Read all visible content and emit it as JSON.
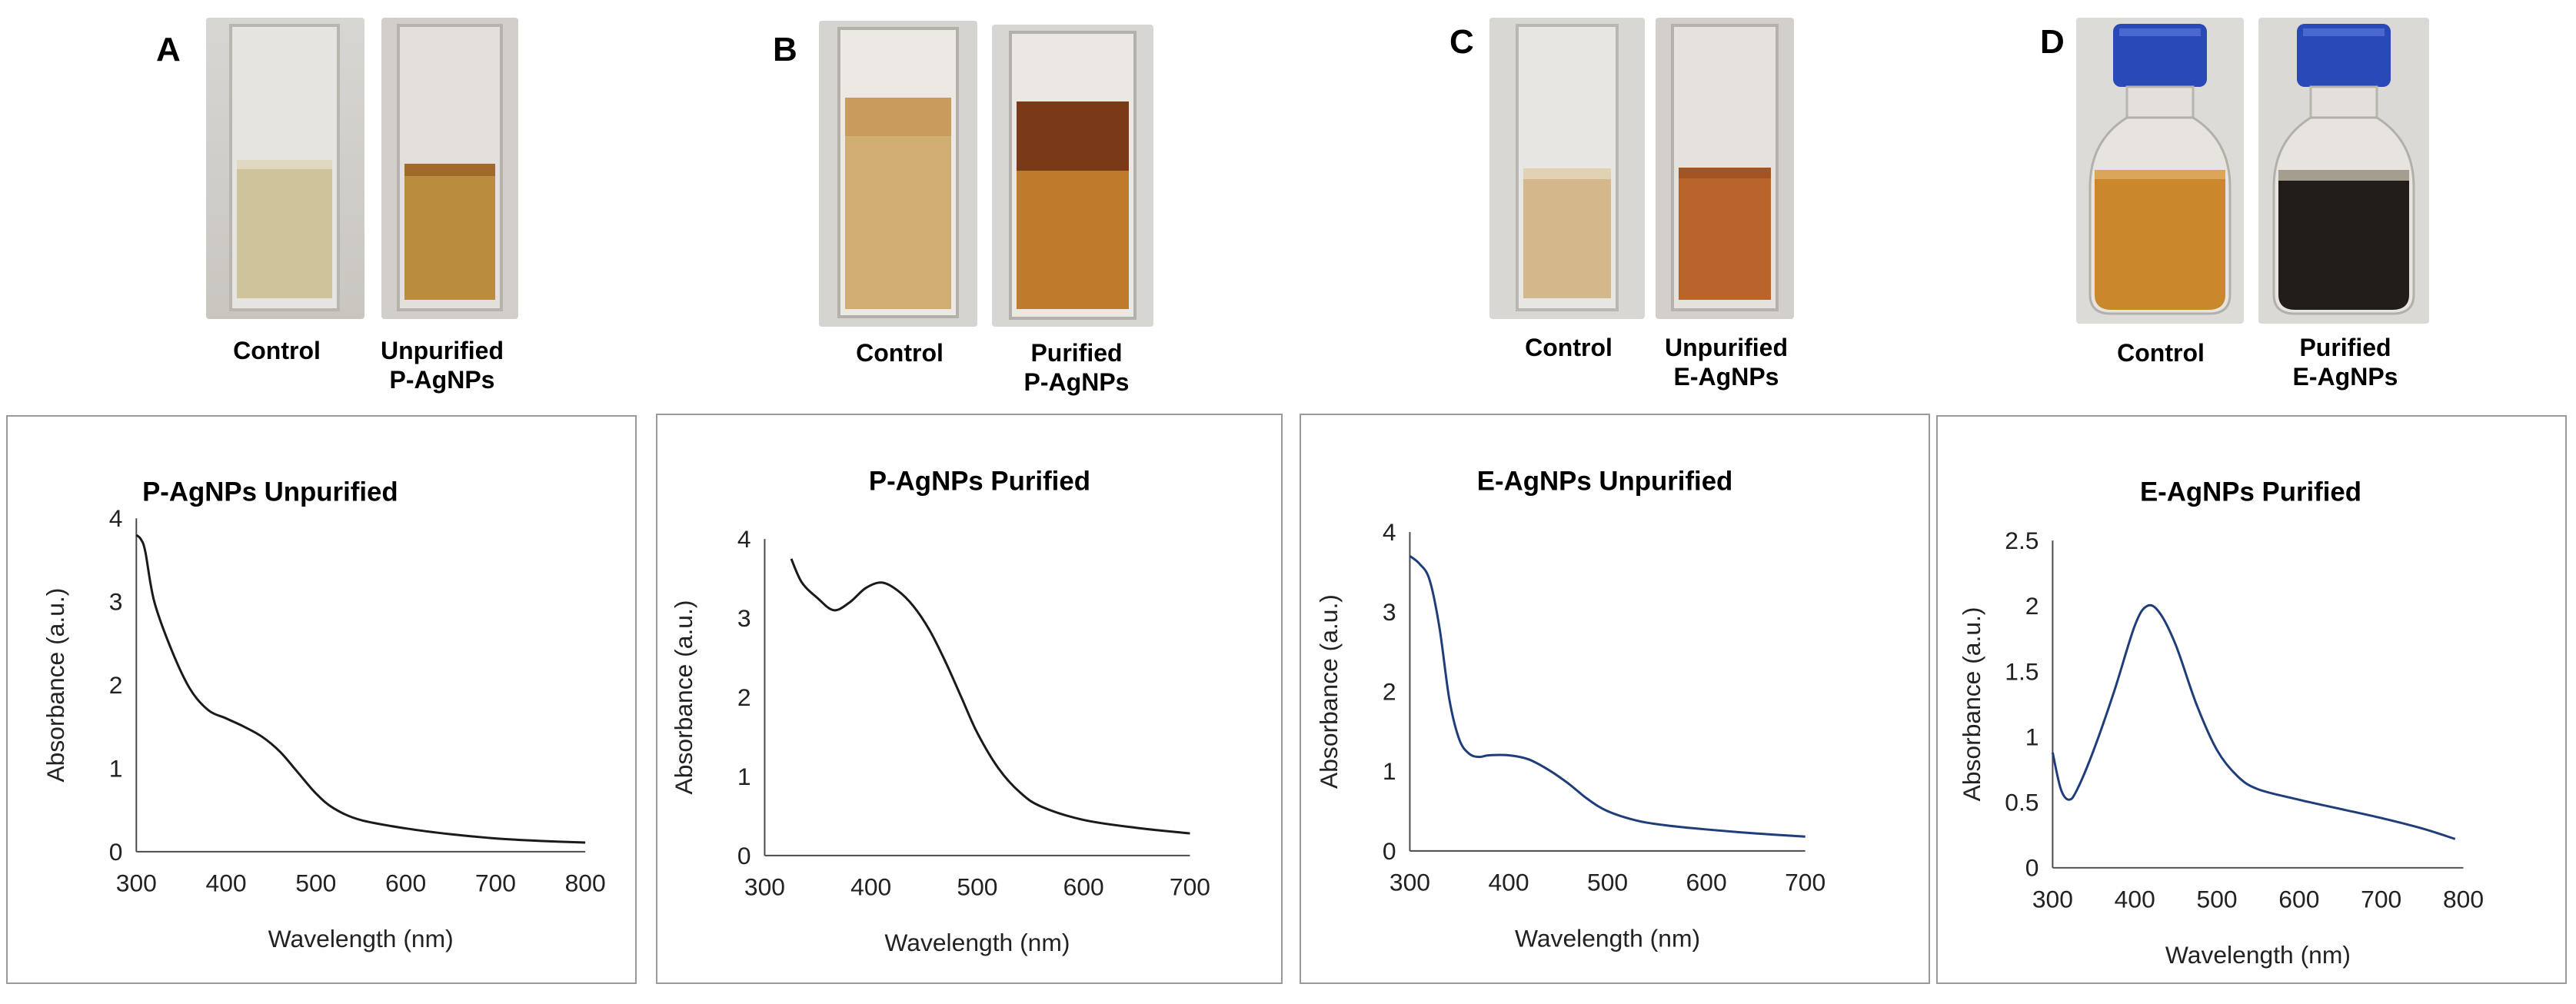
{
  "panels": [
    {
      "letter": "A",
      "captions": [
        [
          "Control"
        ],
        [
          "Unpurified",
          "P-AgNPs"
        ]
      ]
    },
    {
      "letter": "B",
      "captions": [
        [
          "Control"
        ],
        [
          "Purified",
          "P-AgNPs"
        ]
      ]
    },
    {
      "letter": "C",
      "captions": [
        [
          "Control"
        ],
        [
          "Unpurified",
          "E-AgNPs"
        ]
      ]
    },
    {
      "letter": "D",
      "captions": [
        [
          "Control"
        ],
        [
          "Purified",
          "E-AgNPs"
        ]
      ]
    }
  ],
  "colors": {
    "black_line": "#1a1a1a",
    "blue_line": "#1f3d7a",
    "frame": "#9a9a9a"
  },
  "chart_data": [
    {
      "type": "line",
      "title": "P-AgNPs  Unpurified",
      "xlabel": "Wavelength (nm)",
      "ylabel": "Absorbance (a.u.)",
      "xlim": [
        300,
        800
      ],
      "ylim": [
        0,
        4
      ],
      "xticks": [
        300,
        400,
        500,
        600,
        700,
        800
      ],
      "yticks": [
        0,
        1,
        2,
        3,
        4
      ],
      "series": [
        {
          "name": "P-AgNPs Unpurified",
          "color": "#1a1a1a",
          "x": [
            300,
            305,
            310,
            320,
            340,
            360,
            380,
            400,
            420,
            440,
            460,
            480,
            500,
            520,
            550,
            600,
            650,
            700,
            750,
            800
          ],
          "y": [
            3.8,
            3.75,
            3.6,
            3.0,
            2.4,
            1.95,
            1.7,
            1.6,
            1.5,
            1.38,
            1.2,
            0.95,
            0.7,
            0.52,
            0.38,
            0.28,
            0.21,
            0.16,
            0.13,
            0.11
          ]
        }
      ]
    },
    {
      "type": "line",
      "title": "P-AgNPs  Purified",
      "xlabel": "Wavelength (nm)",
      "ylabel": "Absorbance (a.u.)",
      "xlim": [
        300,
        700
      ],
      "ylim": [
        0,
        4
      ],
      "xticks": [
        300,
        400,
        500,
        600,
        700
      ],
      "yticks": [
        0,
        1,
        2,
        3,
        4
      ],
      "series": [
        {
          "name": "P-AgNPs Purified",
          "color": "#1a1a1a",
          "x": [
            325,
            335,
            350,
            365,
            380,
            395,
            410,
            425,
            440,
            455,
            470,
            485,
            500,
            520,
            540,
            560,
            600,
            650,
            700
          ],
          "y": [
            3.75,
            3.45,
            3.25,
            3.1,
            3.2,
            3.38,
            3.45,
            3.35,
            3.15,
            2.85,
            2.45,
            2.0,
            1.55,
            1.1,
            0.8,
            0.62,
            0.45,
            0.35,
            0.28
          ]
        }
      ]
    },
    {
      "type": "line",
      "title": "E-AgNPs  Unpurified",
      "xlabel": "Wavelength (nm)",
      "ylabel": "Absorbance (a.u.)",
      "xlim": [
        300,
        700
      ],
      "ylim": [
        0,
        4
      ],
      "xticks": [
        300,
        400,
        500,
        600,
        700
      ],
      "yticks": [
        0,
        1,
        2,
        3,
        4
      ],
      "series": [
        {
          "name": "E-AgNPs Unpurified",
          "color": "#1f3d7a",
          "x": [
            300,
            310,
            320,
            330,
            340,
            350,
            360,
            370,
            380,
            400,
            420,
            440,
            460,
            480,
            500,
            530,
            560,
            600,
            650,
            700
          ],
          "y": [
            3.7,
            3.6,
            3.4,
            2.8,
            1.9,
            1.4,
            1.22,
            1.18,
            1.2,
            1.2,
            1.15,
            1.02,
            0.85,
            0.65,
            0.5,
            0.38,
            0.32,
            0.27,
            0.22,
            0.18
          ]
        }
      ]
    },
    {
      "type": "line",
      "title": "E-AgNPs  Purified",
      "xlabel": "Wavelength (nm)",
      "ylabel": "Absorbance (a.u.)",
      "xlim": [
        300,
        800
      ],
      "ylim": [
        0,
        2.5
      ],
      "xticks": [
        300,
        400,
        500,
        600,
        700,
        800
      ],
      "yticks": [
        0,
        0.5,
        1,
        1.5,
        2,
        2.5
      ],
      "series": [
        {
          "name": "E-AgNPs Purified",
          "color": "#1f3d7a",
          "x": [
            300,
            310,
            320,
            330,
            350,
            375,
            400,
            415,
            430,
            450,
            475,
            500,
            525,
            550,
            600,
            650,
            700,
            750,
            790
          ],
          "y": [
            0.88,
            0.6,
            0.52,
            0.6,
            0.9,
            1.35,
            1.85,
            2.0,
            1.95,
            1.7,
            1.25,
            0.9,
            0.7,
            0.6,
            0.52,
            0.45,
            0.38,
            0.3,
            0.22
          ]
        }
      ]
    }
  ]
}
